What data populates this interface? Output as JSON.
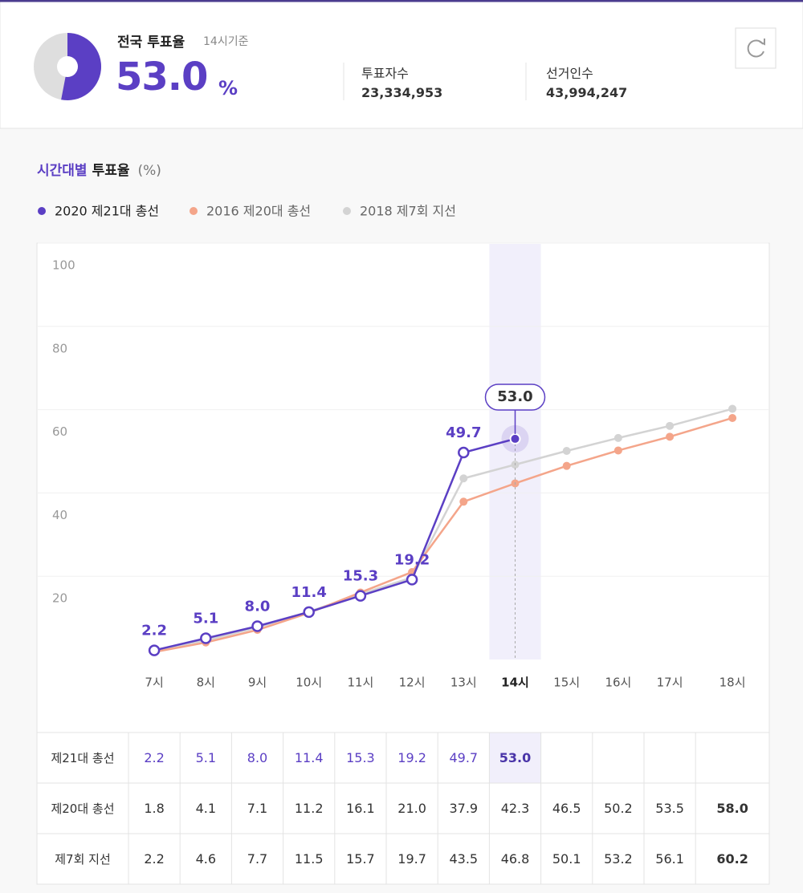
{
  "header": {
    "title": "전국 투표율",
    "basis": "14시기준",
    "rate": 53.0,
    "rate_label": "53.0",
    "rate_unit": "%",
    "rate_color": "#5b3fc4",
    "stats": [
      {
        "label": "투표자수",
        "value": "23,334,953"
      },
      {
        "label": "선거인수",
        "value": "43,994,247"
      }
    ]
  },
  "chart_data": {
    "type": "line",
    "title_accent": "시간대별",
    "title": "투표율",
    "unit": "(%)",
    "categories": [
      "7시",
      "8시",
      "9시",
      "10시",
      "11시",
      "12시",
      "13시",
      "14시",
      "15시",
      "16시",
      "17시",
      "18시"
    ],
    "highlight": "14시",
    "series": [
      {
        "name": "2020 제21대 총선",
        "row_label": "제21대 총선",
        "color": "#5b3fc4",
        "values": [
          2.2,
          5.1,
          8.0,
          11.4,
          15.3,
          19.2,
          49.7,
          53.0,
          null,
          null,
          null,
          null
        ],
        "value_labels": [
          "2.2",
          "5.1",
          "8.0",
          "11.4",
          "15.3",
          "19.2",
          "49.7",
          "53.0",
          null,
          null,
          null,
          null
        ]
      },
      {
        "name": "2016 제20대 총선",
        "row_label": "제20대 총선",
        "color": "#f4a58a",
        "values": [
          1.8,
          4.1,
          7.1,
          11.2,
          16.1,
          21.0,
          37.9,
          42.3,
          46.5,
          50.2,
          53.5,
          58.0
        ],
        "value_labels": [
          "1.8",
          "4.1",
          "7.1",
          "11.2",
          "16.1",
          "21.0",
          "37.9",
          "42.3",
          "46.5",
          "50.2",
          "53.5",
          "58.0"
        ]
      },
      {
        "name": "2018 제7회 지선",
        "row_label": "제7회 지선",
        "color": "#d3d3d3",
        "values": [
          2.2,
          4.6,
          7.7,
          11.5,
          15.7,
          19.7,
          43.5,
          46.8,
          50.1,
          53.2,
          56.1,
          60.2
        ],
        "value_labels": [
          "2.2",
          "4.6",
          "7.7",
          "11.5",
          "15.7",
          "19.7",
          "43.5",
          "46.8",
          "50.1",
          "53.2",
          "56.1",
          "60.2"
        ]
      }
    ],
    "ylim": [
      0,
      100
    ],
    "yticks": [
      20,
      40,
      60,
      80,
      100
    ],
    "grid": true
  }
}
